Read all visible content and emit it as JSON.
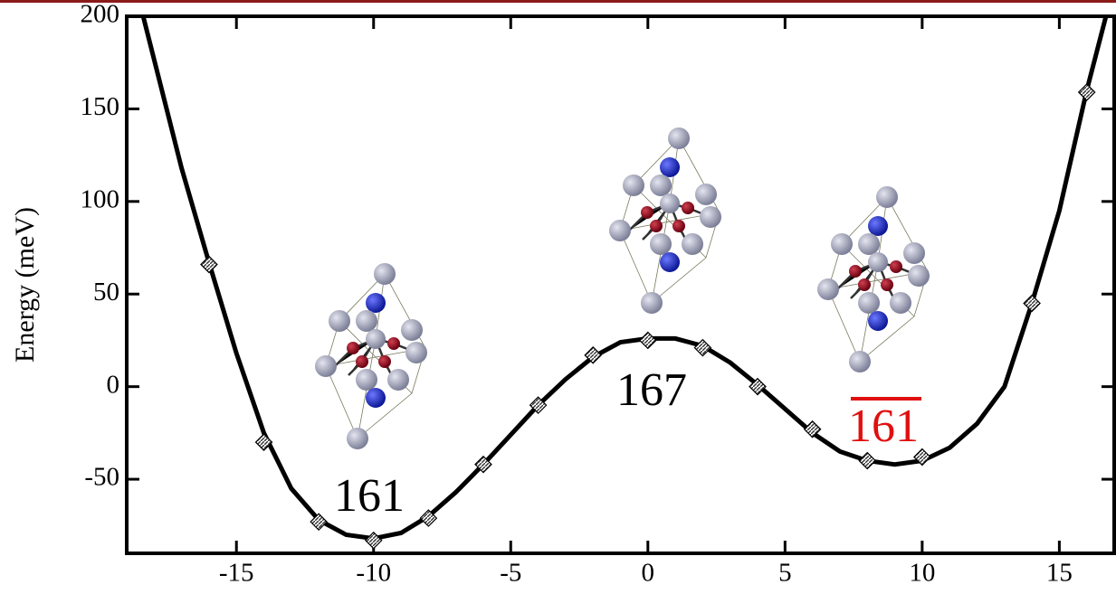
{
  "chart_data": {
    "type": "line",
    "y_label": "Energy (meV)",
    "xlim": [
      -19,
      17
    ],
    "xticks": [
      -15,
      -10,
      -5,
      0,
      5,
      10,
      15
    ],
    "ylim": [
      -90,
      200
    ],
    "yticks": [
      -50,
      0,
      50,
      100,
      150,
      200
    ],
    "series": [
      {
        "mode": "markers",
        "color": "#000000",
        "x": [
          -16,
          -14,
          -12,
          -10,
          -8,
          -6,
          -4,
          -2,
          0,
          2,
          4,
          6,
          8,
          10,
          14,
          16
        ],
        "values": [
          66,
          -30,
          -73,
          -83,
          -71,
          -42,
          -10,
          17,
          25,
          21,
          0,
          -23,
          -40,
          -38,
          45,
          159
        ]
      },
      {
        "mode": "line",
        "color": "#000000",
        "x": [
          -18.4,
          -17,
          -16,
          -15,
          -14,
          -13,
          -12,
          -11,
          -10,
          -9,
          -8,
          -7,
          -6,
          -5,
          -4,
          -3,
          -2,
          -1,
          0,
          1,
          2,
          3,
          4,
          5,
          6,
          7,
          8,
          9,
          10,
          11,
          12,
          13,
          14,
          15,
          16,
          16.7
        ],
        "values": [
          200,
          118,
          67,
          18,
          -25,
          -55,
          -72,
          -80,
          -82,
          -79,
          -70,
          -57,
          -42,
          -26,
          -10,
          4,
          16,
          24,
          26,
          26,
          22,
          13,
          1,
          -12,
          -25,
          -35,
          -40,
          -42,
          -40,
          -33,
          -20,
          0,
          45,
          95,
          160,
          200
        ]
      }
    ],
    "annotations": [
      {
        "text": "161",
        "color": "#000000"
      },
      {
        "text": "167",
        "color": "#000000"
      },
      {
        "text": "161",
        "color": "#e01010",
        "overline": true
      }
    ]
  }
}
